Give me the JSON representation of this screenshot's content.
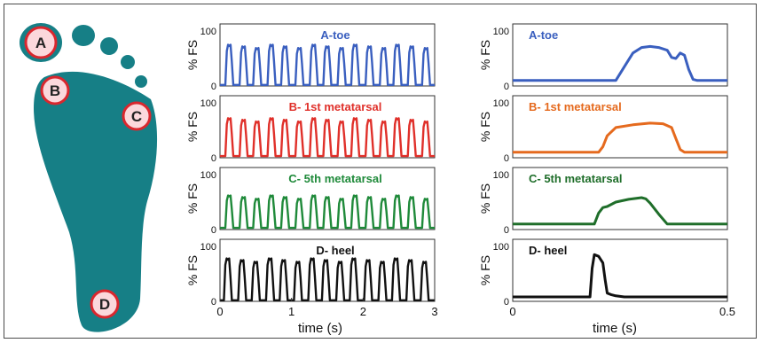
{
  "foot_markers": [
    {
      "label": "A"
    },
    {
      "label": "B"
    },
    {
      "label": "C"
    },
    {
      "label": "D"
    }
  ],
  "colors": {
    "foot": "#167f86",
    "marker_fill": "#fbd8dc",
    "marker_stroke": "#d9272e",
    "series": [
      "#3a5fbf",
      "#e0302a",
      "#1f8a3a",
      "#111111"
    ],
    "series_right": [
      "#3a5fbf",
      "#e56a1e",
      "#1f6e2a",
      "#111111"
    ]
  },
  "chart_data": [
    {
      "type": "line",
      "panel": "left",
      "xlabel": "time (s)",
      "xlim": [
        0,
        3
      ],
      "xticks": [
        0,
        1,
        2,
        3
      ],
      "panels": [
        {
          "title": "A-toe",
          "ylabel": "% FS",
          "ylim": [
            0,
            100
          ],
          "yticks": [
            0,
            100
          ],
          "peaks": [
            0.13,
            0.33,
            0.52,
            0.72,
            0.91,
            1.11,
            1.31,
            1.5,
            1.7,
            1.89,
            2.09,
            2.29,
            2.48,
            2.68,
            2.88
          ],
          "peak_value": 75,
          "base_value": 2
        },
        {
          "title": "B- 1st metatarsal",
          "ylabel": "% FS",
          "ylim": [
            0,
            100
          ],
          "yticks": [
            0,
            100
          ],
          "peaks": [
            0.13,
            0.33,
            0.52,
            0.72,
            0.91,
            1.11,
            1.31,
            1.5,
            1.7,
            1.89,
            2.09,
            2.29,
            2.48,
            2.68,
            2.88
          ],
          "peak_value": 72,
          "base_value": 3
        },
        {
          "title": "C- 5th metatarsal",
          "ylabel": "% FS",
          "ylim": [
            0,
            100
          ],
          "yticks": [
            0,
            100
          ],
          "peaks": [
            0.13,
            0.33,
            0.52,
            0.72,
            0.91,
            1.11,
            1.31,
            1.5,
            1.7,
            1.89,
            2.09,
            2.29,
            2.48,
            2.68,
            2.88
          ],
          "peak_value": 62,
          "base_value": 3
        },
        {
          "title": "D- heel",
          "ylabel": "% FS",
          "ylim": [
            0,
            100
          ],
          "yticks": [
            0,
            100
          ],
          "peaks": [
            0.11,
            0.31,
            0.5,
            0.7,
            0.89,
            1.09,
            1.29,
            1.48,
            1.68,
            1.87,
            2.07,
            2.27,
            2.46,
            2.66,
            2.86
          ],
          "peak_value": 78,
          "base_value": 2
        }
      ]
    },
    {
      "type": "line",
      "panel": "right",
      "xlabel": "time (s)",
      "xlim": [
        0,
        0.5
      ],
      "xticks": [
        0,
        0.5
      ],
      "panels": [
        {
          "title": "A-toe",
          "ylabel": "% FS",
          "ylim": [
            0,
            100
          ],
          "yticks": [
            0,
            100
          ],
          "x": [
            0,
            0.24,
            0.26,
            0.28,
            0.3,
            0.32,
            0.34,
            0.36,
            0.37,
            0.38,
            0.39,
            0.4,
            0.41,
            0.42,
            0.43,
            0.5
          ],
          "y": [
            10,
            10,
            35,
            60,
            70,
            72,
            70,
            65,
            52,
            50,
            60,
            56,
            30,
            12,
            10,
            10
          ]
        },
        {
          "title": "B- 1st metatarsal",
          "ylabel": "% FS",
          "ylim": [
            0,
            100
          ],
          "yticks": [
            0,
            100
          ],
          "x": [
            0,
            0.2,
            0.21,
            0.22,
            0.24,
            0.28,
            0.32,
            0.35,
            0.37,
            0.38,
            0.39,
            0.4,
            0.5
          ],
          "y": [
            10,
            10,
            20,
            40,
            55,
            60,
            63,
            62,
            55,
            35,
            15,
            10,
            10
          ]
        },
        {
          "title": "C- 5th metatarsal",
          "ylabel": "% FS",
          "ylim": [
            0,
            100
          ],
          "yticks": [
            0,
            100
          ],
          "x": [
            0,
            0.19,
            0.2,
            0.21,
            0.22,
            0.24,
            0.27,
            0.3,
            0.31,
            0.32,
            0.34,
            0.36,
            0.37,
            0.5
          ],
          "y": [
            10,
            10,
            30,
            40,
            42,
            50,
            55,
            58,
            56,
            48,
            28,
            10,
            10,
            10
          ]
        },
        {
          "title": "D- heel",
          "ylabel": "% FS",
          "ylim": [
            0,
            100
          ],
          "yticks": [
            0,
            100
          ],
          "x": [
            0,
            0.18,
            0.185,
            0.19,
            0.2,
            0.21,
            0.215,
            0.22,
            0.23,
            0.24,
            0.26,
            0.5
          ],
          "y": [
            8,
            8,
            60,
            85,
            82,
            70,
            40,
            15,
            12,
            10,
            8,
            8
          ]
        }
      ]
    }
  ]
}
